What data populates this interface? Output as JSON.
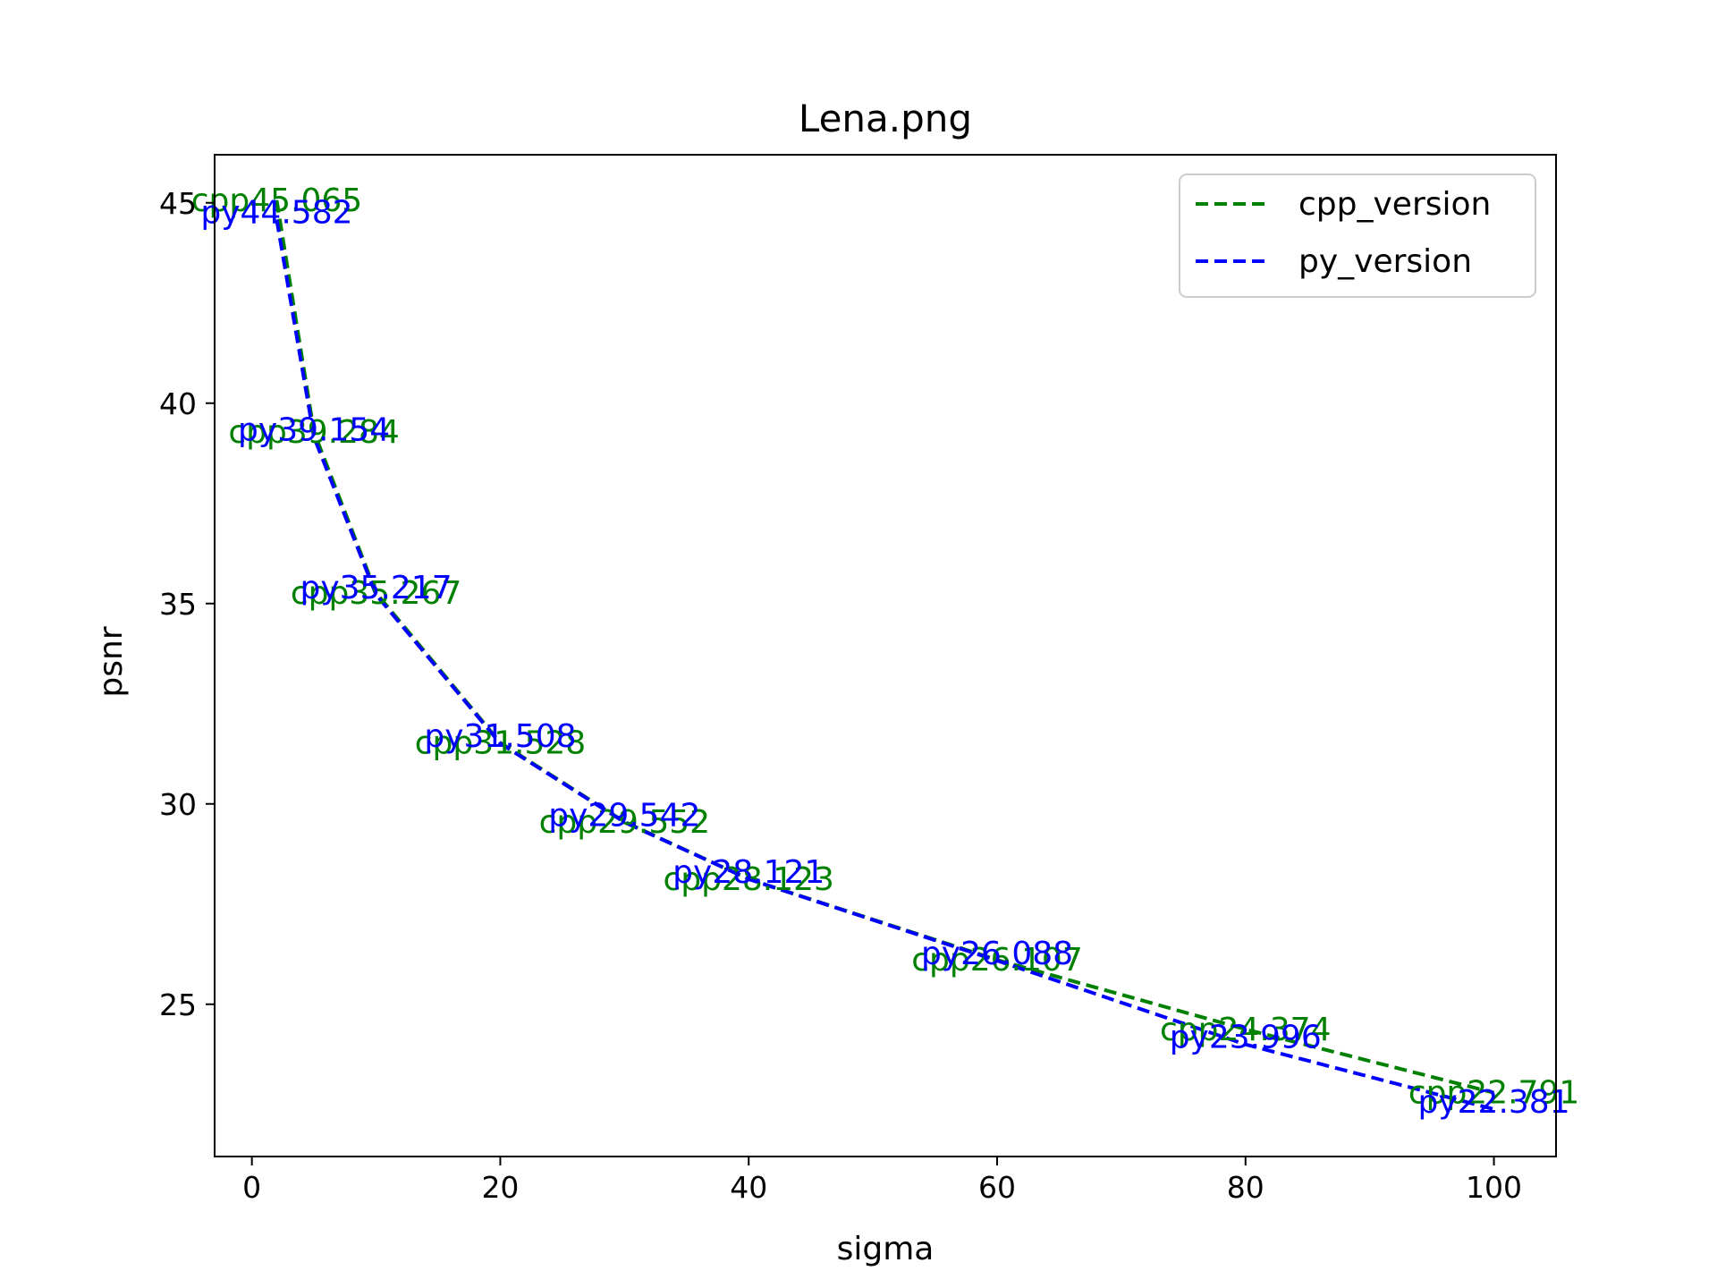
{
  "chart_data": {
    "type": "line",
    "title": "Lena.png",
    "xlabel": "sigma",
    "ylabel": "psnr",
    "xlim": [
      -3,
      105
    ],
    "ylim": [
      21.2,
      46.2
    ],
    "xticks": [
      0,
      20,
      40,
      60,
      80,
      100
    ],
    "yticks": [
      25,
      30,
      35,
      40,
      45
    ],
    "grid": false,
    "legend_position": "top-right",
    "x": [
      2,
      5,
      10,
      20,
      30,
      40,
      60,
      80,
      100
    ],
    "series": [
      {
        "name": "cpp_version",
        "label_prefix": "cpp",
        "color": "#008000",
        "style": "dashed",
        "values": [
          45.065,
          39.284,
          35.267,
          31.528,
          29.552,
          28.123,
          26.107,
          24.374,
          22.791
        ],
        "labels": [
          "cpp45.065",
          "cpp39.284",
          "cpp35.267",
          "cpp31.528",
          "cpp29.552",
          "cpp28.123",
          "cpp26.107",
          "cpp24.374",
          "cpp22.791"
        ]
      },
      {
        "name": "py_version",
        "label_prefix": "py",
        "color": "#0000ff",
        "style": "dashed",
        "values": [
          44.582,
          39.154,
          35.217,
          31.508,
          29.542,
          28.121,
          26.088,
          23.996,
          22.381
        ],
        "labels": [
          "py44.582",
          "py39.154",
          "py35.217",
          "py31.508",
          "py29.542",
          "py28.121",
          "py26.088",
          "py23.996",
          "py22.381"
        ]
      }
    ]
  }
}
